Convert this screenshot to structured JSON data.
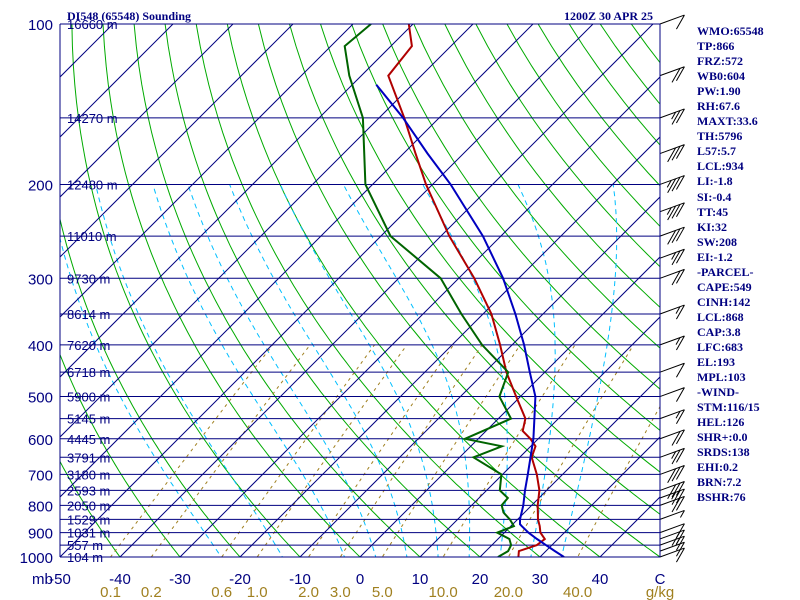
{
  "header": {
    "left_title": "DI548 (65548) Sounding",
    "right_title": "1200Z 30 APR 25"
  },
  "colors": {
    "axis": "#000080",
    "isobar": "#000080",
    "isotherm": "#000080",
    "dry_adiabat": "#00aa00",
    "moist_adiabat": "#00bfff",
    "mixing_ratio": "#a08020",
    "temperature": "#b00000",
    "dewpoint": "#006400",
    "parcel": "#0000c0"
  },
  "indices": [
    "WMO:65548",
    "TP:866",
    "FRZ:572",
    "WB0:604",
    "PW:1.90",
    "RH:67.6",
    "MAXT:33.6",
    "TH:5796",
    "L57:5.7",
    "LCL:934",
    "LI:-1.8",
    "SI:-0.4",
    "TT:45",
    "KI:32",
    "SW:208",
    "EI:-1.2",
    "-PARCEL-",
    "CAPE:549",
    "CINH:142",
    "LCL:868",
    "CAP:3.8",
    "LFC:683",
    "EL:193",
    "MPL:103",
    "-WIND-",
    "STM:116/15",
    "HEL:126",
    "SHR+:0.0",
    "SRDS:138",
    "EHI:0.2",
    "BRN:7.2",
    "BSHR:76"
  ],
  "chart_data": {
    "type": "line",
    "title": "DI548 (65548) Sounding",
    "xlabel": "C",
    "ylabel": "mb",
    "mixing_ratio_unit": "g/kg",
    "temperature_ticks": [
      "-50",
      "-40",
      "-30",
      "-20",
      "-10",
      "0",
      "10",
      "20",
      "30",
      "40",
      "C"
    ],
    "temperature_tick_values": [
      -50,
      -40,
      -30,
      -20,
      -10,
      0,
      10,
      20,
      30,
      40
    ],
    "xlim": [
      -50,
      50
    ],
    "ylim": [
      1000,
      100
    ],
    "y_scale": "log",
    "pressure_ticks": [
      "100",
      "200",
      "300",
      "400",
      "500",
      "600",
      "700",
      "800",
      "900",
      "1000"
    ],
    "pressure_tick_values": [
      100,
      200,
      300,
      400,
      500,
      600,
      700,
      800,
      900,
      1000
    ],
    "height_labels": [
      {
        "p": 100,
        "label": "16660 m"
      },
      {
        "p": 150,
        "label": "14270 m"
      },
      {
        "p": 200,
        "label": "12480 m"
      },
      {
        "p": 250,
        "label": "11010 m"
      },
      {
        "p": 300,
        "label": "9730 m"
      },
      {
        "p": 350,
        "label": "8614 m"
      },
      {
        "p": 400,
        "label": "7620 m"
      },
      {
        "p": 450,
        "label": "6718 m"
      },
      {
        "p": 500,
        "label": "5900 m"
      },
      {
        "p": 550,
        "label": "5145 m"
      },
      {
        "p": 600,
        "label": "4445 m"
      },
      {
        "p": 650,
        "label": "3791 m"
      },
      {
        "p": 700,
        "label": "3180 m"
      },
      {
        "p": 750,
        "label": "2593 m"
      },
      {
        "p": 800,
        "label": "2050 m"
      },
      {
        "p": 850,
        "label": "1529 m"
      },
      {
        "p": 900,
        "label": "1031 m"
      },
      {
        "p": 950,
        "label": "557 m"
      },
      {
        "p": 1000,
        "label": "104 m"
      }
    ],
    "mixing_ratio_ticks": [
      "0.1",
      "0.2",
      "0.6",
      "1.0",
      "2.0",
      "3.0",
      "5.0",
      "10.0",
      "20.0",
      "40.0"
    ],
    "mixing_ratio_values": [
      0.1,
      0.2,
      0.6,
      1.0,
      2.0,
      3.0,
      5.0,
      10.0,
      20.0,
      40.0
    ],
    "series": [
      {
        "key": "temperature",
        "points": [
          [
            1000,
            26.4
          ],
          [
            975,
            25.5
          ],
          [
            950,
            27.5
          ],
          [
            925,
            27.8
          ],
          [
            900,
            26.0
          ],
          [
            875,
            24.8
          ],
          [
            850,
            23.4
          ],
          [
            800,
            21.0
          ],
          [
            750,
            18.8
          ],
          [
            700,
            15.7
          ],
          [
            650,
            12.0
          ],
          [
            620,
            10.8
          ],
          [
            600,
            8.7
          ],
          [
            580,
            6.1
          ],
          [
            550,
            4.5
          ],
          [
            500,
            -0.7
          ],
          [
            450,
            -6.4
          ],
          [
            400,
            -12.0
          ],
          [
            350,
            -18.6
          ],
          [
            300,
            -27.4
          ],
          [
            250,
            -38.6
          ],
          [
            200,
            -51.1
          ],
          [
            175,
            -58.0
          ],
          [
            150,
            -65.8
          ],
          [
            125,
            -75.5
          ],
          [
            110,
            -76.5
          ],
          [
            100,
            -80.7
          ]
        ]
      },
      {
        "key": "dewpoint",
        "points": [
          [
            1000,
            23.0
          ],
          [
            975,
            23.7
          ],
          [
            950,
            23.2
          ],
          [
            925,
            21.9
          ],
          [
            900,
            18.8
          ],
          [
            875,
            20.5
          ],
          [
            850,
            18.7
          ],
          [
            825,
            16.5
          ],
          [
            800,
            15.0
          ],
          [
            775,
            14.8
          ],
          [
            750,
            12.2
          ],
          [
            700,
            9.8
          ],
          [
            650,
            2.3
          ],
          [
            620,
            5.2
          ],
          [
            600,
            -2.2
          ],
          [
            550,
            2.1
          ],
          [
            500,
            -3.5
          ],
          [
            450,
            -6.1
          ],
          [
            400,
            -15.0
          ],
          [
            350,
            -23.6
          ],
          [
            300,
            -33.0
          ],
          [
            250,
            -48.4
          ],
          [
            200,
            -61.2
          ],
          [
            150,
            -72.7
          ],
          [
            125,
            -82.0
          ],
          [
            110,
            -87.7
          ],
          [
            100,
            -87.0
          ]
        ]
      },
      {
        "key": "parcel",
        "points": [
          [
            1000,
            34.0
          ],
          [
            975,
            31.5
          ],
          [
            950,
            29.0
          ],
          [
            925,
            26.5
          ],
          [
            900,
            24.0
          ],
          [
            875,
            21.8
          ],
          [
            868,
            21.2
          ],
          [
            850,
            20.4
          ],
          [
            800,
            18.6
          ],
          [
            750,
            16.4
          ],
          [
            700,
            14.2
          ],
          [
            650,
            11.8
          ],
          [
            600,
            9.2
          ],
          [
            550,
            6.0
          ],
          [
            500,
            2.5
          ],
          [
            450,
            -2.5
          ],
          [
            400,
            -8.0
          ],
          [
            350,
            -14.6
          ],
          [
            300,
            -22.6
          ],
          [
            250,
            -33.0
          ],
          [
            200,
            -47.0
          ],
          [
            175,
            -56.0
          ],
          [
            150,
            -66.0
          ],
          [
            130,
            -76.0
          ]
        ]
      }
    ],
    "wind_barbs": [
      {
        "p": 1000,
        "speed": 10
      },
      {
        "p": 975,
        "speed": 10
      },
      {
        "p": 950,
        "speed": 15
      },
      {
        "p": 925,
        "speed": 20
      },
      {
        "p": 900,
        "speed": 10
      },
      {
        "p": 850,
        "speed": 5
      },
      {
        "p": 800,
        "speed": 20
      },
      {
        "p": 775,
        "speed": 25
      },
      {
        "p": 750,
        "speed": 30
      },
      {
        "p": 700,
        "speed": 30
      },
      {
        "p": 650,
        "speed": 25
      },
      {
        "p": 600,
        "speed": 20
      },
      {
        "p": 550,
        "speed": 15
      },
      {
        "p": 500,
        "speed": 10
      },
      {
        "p": 450,
        "speed": 10
      },
      {
        "p": 400,
        "speed": 15
      },
      {
        "p": 350,
        "speed": 15
      },
      {
        "p": 300,
        "speed": 20
      },
      {
        "p": 275,
        "speed": 25
      },
      {
        "p": 250,
        "speed": 30
      },
      {
        "p": 225,
        "speed": 35
      },
      {
        "p": 200,
        "speed": 35
      },
      {
        "p": 175,
        "speed": 30
      },
      {
        "p": 150,
        "speed": 25
      },
      {
        "p": 125,
        "speed": 20
      },
      {
        "p": 100,
        "speed": 10
      }
    ]
  }
}
